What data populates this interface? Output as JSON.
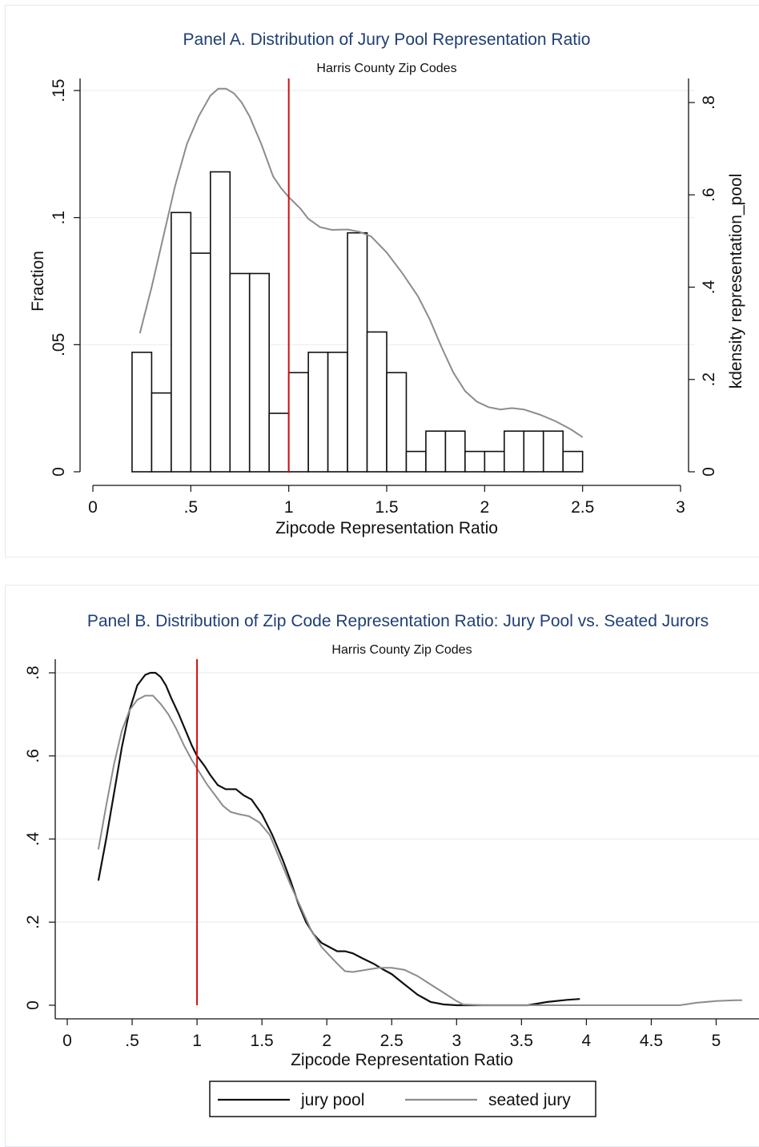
{
  "chart_data": [
    {
      "type": "bar",
      "title": "Panel A. Distribution of Jury Pool Representation Ratio",
      "subtitle": "Harris County Zip Codes",
      "xlabel": "Zipcode Representation Ratio",
      "ylabel": "Fraction",
      "y2label": "kdensity representation_pool",
      "xlim": [
        0,
        3
      ],
      "ylim": [
        0,
        0.15
      ],
      "y2lim": [
        0,
        0.8
      ],
      "xticks": [
        "0",
        ".5",
        "1",
        "1.5",
        "2",
        "2.5",
        "3"
      ],
      "yticks": [
        "0",
        ".05",
        ".1",
        ".15"
      ],
      "y2ticks": [
        "0",
        ".2",
        ".4",
        ".6",
        ".8"
      ],
      "grid": true,
      "reference_line_x": 1,
      "reference_line_color": "#cc1010",
      "bar_width": 0.1,
      "bars": [
        {
          "x": 0.25,
          "value": 0.047
        },
        {
          "x": 0.35,
          "value": 0.031
        },
        {
          "x": 0.45,
          "value": 0.102
        },
        {
          "x": 0.55,
          "value": 0.086
        },
        {
          "x": 0.65,
          "value": 0.118
        },
        {
          "x": 0.75,
          "value": 0.078
        },
        {
          "x": 0.85,
          "value": 0.078
        },
        {
          "x": 0.95,
          "value": 0.023
        },
        {
          "x": 1.05,
          "value": 0.039
        },
        {
          "x": 1.15,
          "value": 0.047
        },
        {
          "x": 1.25,
          "value": 0.047
        },
        {
          "x": 1.35,
          "value": 0.094
        },
        {
          "x": 1.45,
          "value": 0.055
        },
        {
          "x": 1.55,
          "value": 0.039
        },
        {
          "x": 1.65,
          "value": 0.008
        },
        {
          "x": 1.75,
          "value": 0.016
        },
        {
          "x": 1.85,
          "value": 0.016
        },
        {
          "x": 1.95,
          "value": 0.008
        },
        {
          "x": 2.05,
          "value": 0.008
        },
        {
          "x": 2.15,
          "value": 0.016
        },
        {
          "x": 2.25,
          "value": 0.016
        },
        {
          "x": 2.35,
          "value": 0.016
        },
        {
          "x": 2.45,
          "value": 0.008
        }
      ],
      "density": {
        "color": "#8c8c8c",
        "x": [
          0.24,
          0.3,
          0.36,
          0.42,
          0.48,
          0.54,
          0.6,
          0.64,
          0.68,
          0.72,
          0.76,
          0.8,
          0.86,
          0.92,
          0.96,
          1.0,
          1.06,
          1.1,
          1.16,
          1.22,
          1.3,
          1.36,
          1.42,
          1.5,
          1.58,
          1.66,
          1.72,
          1.78,
          1.84,
          1.9,
          1.96,
          2.02,
          2.08,
          2.14,
          2.2,
          2.28,
          2.36,
          2.44,
          2.5
        ],
        "y": [
          0.3,
          0.4,
          0.51,
          0.62,
          0.71,
          0.77,
          0.815,
          0.83,
          0.83,
          0.82,
          0.8,
          0.77,
          0.71,
          0.64,
          0.615,
          0.595,
          0.57,
          0.548,
          0.53,
          0.524,
          0.525,
          0.52,
          0.51,
          0.475,
          0.43,
          0.38,
          0.33,
          0.27,
          0.215,
          0.175,
          0.152,
          0.14,
          0.135,
          0.138,
          0.135,
          0.124,
          0.11,
          0.092,
          0.075
        ]
      }
    },
    {
      "type": "line",
      "title": "Panel B. Distribution of Zip Code Representation Ratio: Jury Pool vs. Seated Jurors",
      "subtitle": "Harris County Zip Codes",
      "xlabel": "Zipcode Representation Ratio",
      "ylabel": "",
      "xlim": [
        0,
        5.25
      ],
      "ylim": [
        0,
        0.8
      ],
      "xticks": [
        "0",
        ".5",
        "1",
        "1.5",
        "2",
        "2.5",
        "3",
        "3.5",
        "4",
        "4.5",
        "5"
      ],
      "yticks": [
        "0",
        ".2",
        ".4",
        ".6",
        ".8"
      ],
      "grid": true,
      "reference_line_x": 1,
      "reference_line_color": "#cc1010",
      "legend_position": "bottom",
      "series": [
        {
          "name": "jury pool",
          "color": "#111111",
          "x": [
            0.24,
            0.3,
            0.36,
            0.42,
            0.48,
            0.54,
            0.6,
            0.64,
            0.68,
            0.72,
            0.76,
            0.8,
            0.86,
            0.92,
            0.96,
            1.0,
            1.06,
            1.1,
            1.16,
            1.22,
            1.3,
            1.36,
            1.42,
            1.5,
            1.58,
            1.66,
            1.72,
            1.78,
            1.84,
            1.9,
            1.96,
            2.02,
            2.08,
            2.14,
            2.2,
            2.28,
            2.36,
            2.44,
            2.5,
            2.6,
            2.7,
            2.8,
            2.9,
            3.0,
            3.1,
            3.3,
            3.55,
            3.7,
            3.85,
            3.95
          ],
          "y": [
            0.3,
            0.4,
            0.51,
            0.62,
            0.71,
            0.77,
            0.795,
            0.8,
            0.8,
            0.79,
            0.77,
            0.74,
            0.7,
            0.655,
            0.625,
            0.6,
            0.575,
            0.555,
            0.53,
            0.52,
            0.52,
            0.505,
            0.495,
            0.46,
            0.41,
            0.35,
            0.3,
            0.245,
            0.2,
            0.17,
            0.15,
            0.14,
            0.13,
            0.13,
            0.125,
            0.112,
            0.1,
            0.085,
            0.075,
            0.05,
            0.025,
            0.008,
            0.002,
            0.0,
            0.0,
            0.0,
            0.0,
            0.008,
            0.013,
            0.015
          ]
        },
        {
          "name": "seated jury",
          "color": "#8c8c8c",
          "x": [
            0.24,
            0.3,
            0.36,
            0.42,
            0.48,
            0.54,
            0.6,
            0.66,
            0.72,
            0.78,
            0.84,
            0.9,
            0.96,
            1.02,
            1.08,
            1.14,
            1.2,
            1.26,
            1.32,
            1.4,
            1.48,
            1.56,
            1.64,
            1.72,
            1.8,
            1.88,
            1.96,
            2.02,
            2.08,
            2.14,
            2.2,
            2.3,
            2.4,
            2.5,
            2.6,
            2.7,
            2.8,
            2.9,
            3.0,
            3.05,
            3.2,
            3.6,
            4.0,
            4.4,
            4.72,
            4.85,
            5.0,
            5.15,
            5.2
          ],
          "y": [
            0.375,
            0.48,
            0.58,
            0.66,
            0.71,
            0.735,
            0.745,
            0.745,
            0.725,
            0.7,
            0.665,
            0.625,
            0.59,
            0.56,
            0.53,
            0.505,
            0.48,
            0.465,
            0.46,
            0.455,
            0.44,
            0.41,
            0.35,
            0.29,
            0.235,
            0.18,
            0.14,
            0.12,
            0.1,
            0.082,
            0.08,
            0.085,
            0.09,
            0.09,
            0.085,
            0.07,
            0.05,
            0.03,
            0.01,
            0.002,
            0.0,
            0.0,
            0.0,
            0.0,
            0.0,
            0.006,
            0.01,
            0.012,
            0.012
          ]
        }
      ]
    }
  ]
}
